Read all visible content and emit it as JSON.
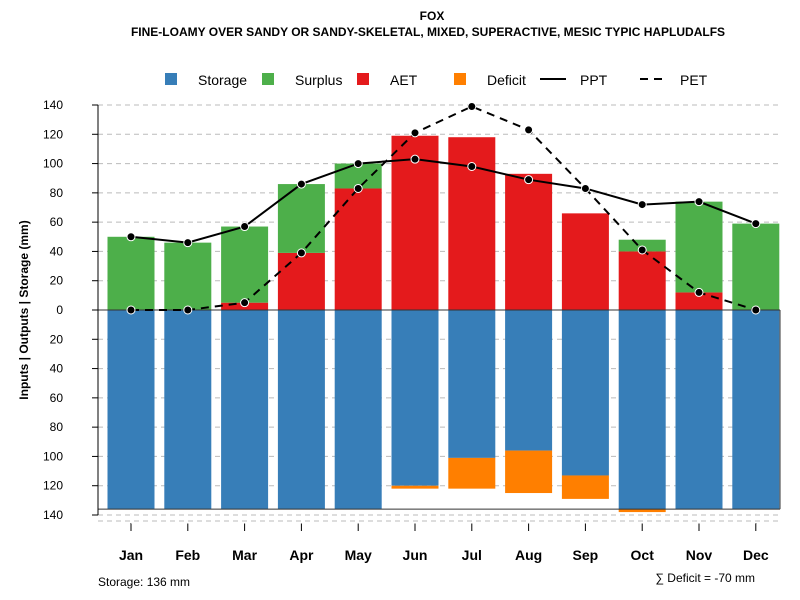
{
  "chart_data": {
    "type": "bar",
    "title": "FOX",
    "subtitle": "FINE-LOAMY OVER SANDY OR SANDY-SKELETAL, MIXED, SUPERACTIVE, MESIC TYPIC HAPLUDALFS",
    "ylabel": "Inputs | Outputs | Storage    (mm)",
    "categories": [
      "Jan",
      "Feb",
      "Mar",
      "Apr",
      "May",
      "Jun",
      "Jul",
      "Aug",
      "Sep",
      "Oct",
      "Nov",
      "Dec"
    ],
    "ylim": [
      -140,
      140
    ],
    "yticks": [
      140,
      120,
      100,
      80,
      60,
      40,
      20,
      0,
      20,
      40,
      60,
      80,
      100,
      120,
      140
    ],
    "series": [
      {
        "name": "Storage",
        "color": "#377EB8",
        "values": [
          136,
          136,
          136,
          136,
          136,
          120,
          101,
          96,
          113,
          136,
          136,
          136
        ]
      },
      {
        "name": "Surplus",
        "color": "#4DAF4A",
        "values": [
          50,
          46,
          52,
          47,
          17,
          0,
          0,
          0,
          0,
          8,
          62,
          59
        ]
      },
      {
        "name": "AET",
        "color": "#E41A1C",
        "values": [
          0,
          0,
          5,
          39,
          83,
          119,
          118,
          93,
          66,
          40,
          12,
          0
        ]
      },
      {
        "name": "Deficit",
        "color": "#FF7F00",
        "values": [
          0,
          0,
          0,
          0,
          0,
          2,
          21,
          29,
          16,
          2,
          0,
          0
        ]
      },
      {
        "name": "PPT",
        "color": "#000000",
        "style": "solid",
        "values": [
          50,
          46,
          57,
          86,
          100,
          103,
          98,
          89,
          83,
          72,
          74,
          59
        ]
      },
      {
        "name": "PET",
        "color": "#000000",
        "style": "dashed",
        "values": [
          0,
          0,
          5,
          39,
          83,
          121,
          139,
          123,
          83,
          41,
          12,
          0
        ]
      }
    ],
    "legend_position": "top",
    "grid": true,
    "annotations": {
      "storage": "Storage: 136 mm",
      "deficit": "∑ Deficit = -70 mm"
    }
  }
}
